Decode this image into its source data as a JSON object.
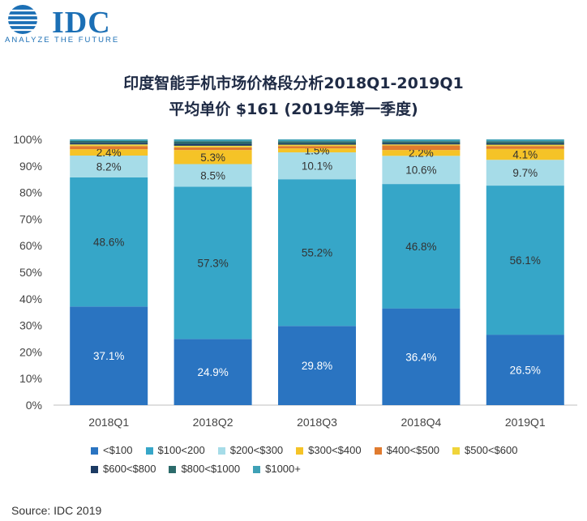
{
  "header": {
    "brand": "IDC",
    "tagline": "ANALYZE THE FUTURE"
  },
  "chart_data": {
    "type": "bar",
    "stacked": true,
    "title": "印度智能手机市场价格段分析2018Q1-2019Q1",
    "subtitle": "平均单价 $161 (2019年第一季度)",
    "categories": [
      "2018Q1",
      "2018Q2",
      "2018Q3",
      "2018Q4",
      "2019Q1"
    ],
    "ylim": [
      0,
      100
    ],
    "yticks": [
      "0%",
      "10%",
      "20%",
      "30%",
      "40%",
      "50%",
      "60%",
      "70%",
      "80%",
      "90%",
      "100%"
    ],
    "grid": false,
    "legend_position": "bottom",
    "series": [
      {
        "name": "<$100",
        "color": "#2a74c1",
        "values": [
          37.1,
          24.9,
          29.8,
          36.4,
          26.5
        ],
        "labels": [
          "37.1%",
          "24.9%",
          "29.8%",
          "36.4%",
          "26.5%"
        ]
      },
      {
        "name": "$100<200",
        "color": "#36a6c8",
        "values": [
          48.6,
          57.3,
          55.2,
          46.8,
          56.1
        ],
        "labels": [
          "48.6%",
          "57.3%",
          "55.2%",
          "46.8%",
          "56.1%"
        ]
      },
      {
        "name": "$200<$300",
        "color": "#a6dce8",
        "values": [
          8.2,
          8.5,
          10.1,
          10.6,
          9.7
        ],
        "labels": [
          "8.2%",
          "8.5%",
          "10.1%",
          "10.6%",
          "9.7%"
        ]
      },
      {
        "name": "$300<$400",
        "color": "#f5c327",
        "values": [
          2.4,
          5.3,
          1.5,
          2.2,
          4.1
        ],
        "labels": [
          "2.4%",
          "5.3%",
          "1.5%",
          "2.2%",
          "4.1%"
        ]
      },
      {
        "name": "$400<$500",
        "color": "#e07b2f",
        "values": [
          1.2,
          1.0,
          0.9,
          1.7,
          1.1
        ]
      },
      {
        "name": "$500<$600",
        "color": "#f0d43a",
        "values": [
          0.6,
          0.6,
          0.5,
          0.4,
          0.5
        ]
      },
      {
        "name": "$600<$800",
        "color": "#1c3b63",
        "values": [
          0.6,
          0.7,
          0.5,
          0.5,
          0.5
        ]
      },
      {
        "name": "$800<$1000",
        "color": "#2c6b6b",
        "values": [
          0.7,
          1.0,
          0.8,
          0.7,
          0.8
        ]
      },
      {
        "name": "$1000+",
        "color": "#3fa1b6",
        "values": [
          0.6,
          0.7,
          0.7,
          0.7,
          0.7
        ]
      }
    ]
  },
  "source": "Source: IDC 2019"
}
